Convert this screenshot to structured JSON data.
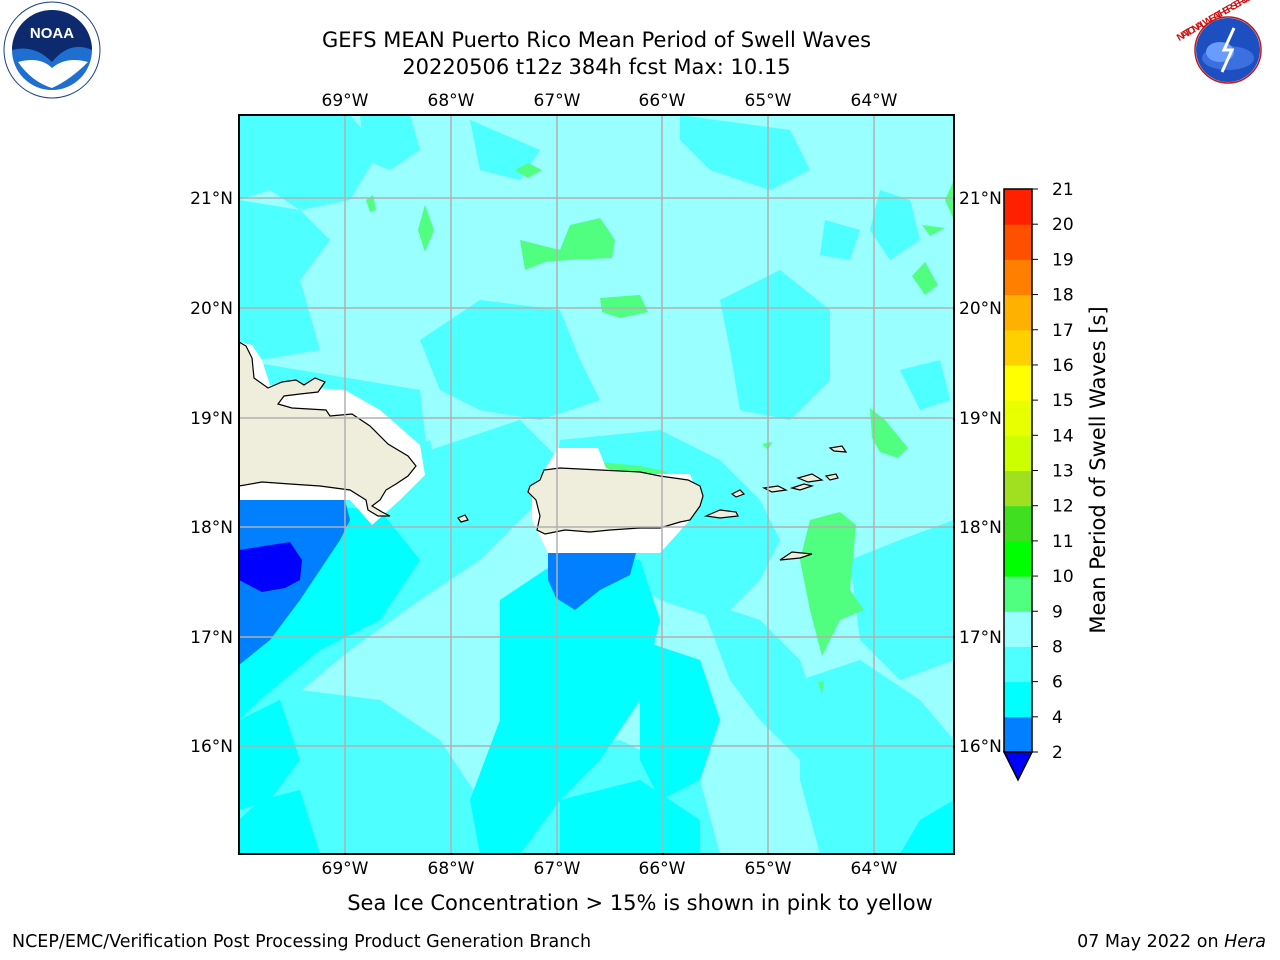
{
  "title": {
    "line1": "GEFS MEAN Puerto Rico Mean Period of Swell Waves",
    "line2": "20220506 t12z 384h fcst   Max: 10.15"
  },
  "map": {
    "region": "Puerto Rico",
    "lon_labels": [
      "69°W",
      "68°W",
      "67°W",
      "66°W",
      "65°W",
      "64°W"
    ],
    "lat_labels": [
      "21°N",
      "20°N",
      "19°N",
      "18°N",
      "17°N",
      "16°N"
    ],
    "gridlines": true
  },
  "colorbar": {
    "label": "Mean Period of Swell Waves [s]",
    "ticks": [
      "2",
      "4",
      "6",
      "8",
      "9",
      "10",
      "11",
      "12",
      "13",
      "14",
      "15",
      "16",
      "17",
      "18",
      "19",
      "20",
      "21"
    ],
    "colors": [
      "#0000ff",
      "#0080ff",
      "#00ffff",
      "#4dffff",
      "#99ffff",
      "#50ff80",
      "#00ff00",
      "#40e020",
      "#a0e020",
      "#ccff00",
      "#e8ff00",
      "#ffff00",
      "#ffd000",
      "#ffb000",
      "#ff8000",
      "#ff5000",
      "#ff2000",
      "#ff0000"
    ],
    "extend": "min"
  },
  "footer_note": "Sea Ice Concentration > 15% is shown in pink to yellow",
  "credit_left": "NCEP/EMC/Verification Post Processing Product Generation Branch",
  "credit_date": "07 May 2022 on",
  "credit_host": "Hera",
  "logos": {
    "noaa_text": "NOAA",
    "nws_text": "NATIONAL WEATHER SERVICE"
  }
}
